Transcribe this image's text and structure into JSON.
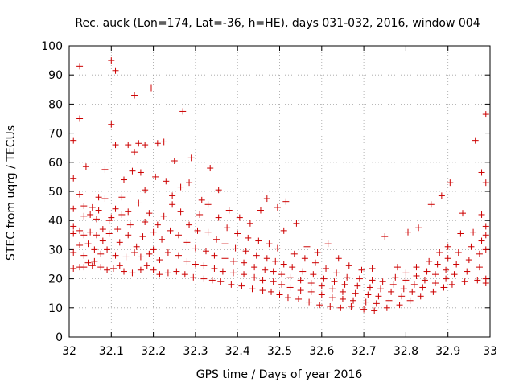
{
  "chart_data": {
    "type": "scatter",
    "title": "Rec. auck (Lon=174, Lat=-36, h=HE), days 031-032, 2016, window 004",
    "xlabel": "GPS time / Days of year 2016",
    "ylabel": "STEC from uqrg / TECUs",
    "xlim": [
      32,
      33
    ],
    "ylim": [
      0,
      100
    ],
    "xticks": [
      32,
      32.1,
      32.2,
      32.3,
      32.4,
      32.5,
      32.6,
      32.7,
      32.8,
      32.9,
      33
    ],
    "xtick_labels": [
      "32",
      "32.1",
      "32.2",
      "32.3",
      "32.4",
      "32.5",
      "32.6",
      "32.7",
      "32.8",
      "32.9",
      "33"
    ],
    "yticks": [
      0,
      10,
      20,
      30,
      40,
      50,
      60,
      70,
      80,
      90,
      100
    ],
    "ytick_labels": [
      "0",
      "10",
      "20",
      "30",
      "40",
      "50",
      "60",
      "70",
      "80",
      "90",
      "100"
    ],
    "grid": true,
    "marker": "+",
    "color": "#cc0000",
    "series": [
      {
        "name": "STEC",
        "points": [
          [
            32.01,
            23.5
          ],
          [
            32.01,
            29.0
          ],
          [
            32.01,
            35.5
          ],
          [
            32.01,
            38.0
          ],
          [
            32.01,
            44.0
          ],
          [
            32.01,
            54.5
          ],
          [
            32.01,
            67.5
          ],
          [
            32.025,
            24.0
          ],
          [
            32.025,
            31.5
          ],
          [
            32.025,
            36.5
          ],
          [
            32.025,
            49.0
          ],
          [
            32.025,
            75.0
          ],
          [
            32.025,
            93.0
          ],
          [
            32.035,
            24.0
          ],
          [
            32.035,
            28.0
          ],
          [
            32.035,
            35.0
          ],
          [
            32.035,
            41.5
          ],
          [
            32.035,
            45.0
          ],
          [
            32.04,
            58.5
          ],
          [
            32.045,
            25.5
          ],
          [
            32.045,
            32.0
          ],
          [
            32.05,
            36.0
          ],
          [
            32.05,
            42.0
          ],
          [
            32.055,
            24.5
          ],
          [
            32.055,
            44.5
          ],
          [
            32.06,
            26.0
          ],
          [
            32.06,
            30.0
          ],
          [
            32.065,
            35.0
          ],
          [
            32.065,
            40.5
          ],
          [
            32.07,
            43.5
          ],
          [
            32.07,
            48.0
          ],
          [
            32.075,
            24.0
          ],
          [
            32.075,
            28.5
          ],
          [
            32.08,
            33.0
          ],
          [
            32.08,
            37.0
          ],
          [
            32.085,
            47.5
          ],
          [
            32.085,
            57.5
          ],
          [
            32.09,
            23.0
          ],
          [
            32.09,
            30.0
          ],
          [
            32.095,
            35.5
          ],
          [
            32.095,
            40.0
          ],
          [
            32.1,
            41.0
          ],
          [
            32.1,
            73.0
          ],
          [
            32.1,
            95.0
          ],
          [
            32.105,
            23.5
          ],
          [
            32.11,
            28.0
          ],
          [
            32.11,
            44.0
          ],
          [
            32.11,
            66.0
          ],
          [
            32.11,
            91.5
          ],
          [
            32.115,
            37.0
          ],
          [
            32.12,
            24.5
          ],
          [
            32.12,
            32.5
          ],
          [
            32.125,
            42.0
          ],
          [
            32.125,
            48.0
          ],
          [
            32.13,
            54.0
          ],
          [
            32.13,
            22.5
          ],
          [
            32.135,
            27.5
          ],
          [
            32.14,
            35.0
          ],
          [
            32.14,
            43.0
          ],
          [
            32.14,
            66.0
          ],
          [
            32.145,
            38.5
          ],
          [
            32.15,
            57.0
          ],
          [
            32.15,
            22.0
          ],
          [
            32.155,
            29.0
          ],
          [
            32.155,
            63.5
          ],
          [
            32.155,
            83.0
          ],
          [
            32.16,
            31.0
          ],
          [
            32.165,
            46.0
          ],
          [
            32.165,
            66.5
          ],
          [
            32.17,
            23.0
          ],
          [
            32.17,
            27.5
          ],
          [
            32.17,
            56.5
          ],
          [
            32.175,
            34.5
          ],
          [
            32.18,
            39.5
          ],
          [
            32.18,
            50.5
          ],
          [
            32.18,
            66.0
          ],
          [
            32.185,
            24.5
          ],
          [
            32.19,
            28.5
          ],
          [
            32.19,
            42.5
          ],
          [
            32.195,
            85.5
          ],
          [
            32.2,
            23.0
          ],
          [
            32.2,
            30.0
          ],
          [
            32.2,
            36.0
          ],
          [
            32.205,
            55.0
          ],
          [
            32.21,
            38.5
          ],
          [
            32.21,
            66.5
          ],
          [
            32.215,
            21.5
          ],
          [
            32.215,
            26.5
          ],
          [
            32.22,
            33.5
          ],
          [
            32.225,
            41.5
          ],
          [
            32.225,
            67.0
          ],
          [
            32.23,
            53.5
          ],
          [
            32.235,
            22.0
          ],
          [
            32.235,
            29.0
          ],
          [
            32.24,
            36.5
          ],
          [
            32.245,
            45.5
          ],
          [
            32.245,
            48.5
          ],
          [
            32.25,
            60.5
          ],
          [
            32.255,
            22.5
          ],
          [
            32.26,
            28.0
          ],
          [
            32.26,
            35.0
          ],
          [
            32.265,
            43.0
          ],
          [
            32.265,
            51.5
          ],
          [
            32.27,
            77.5
          ],
          [
            32.275,
            21.5
          ],
          [
            32.28,
            26.0
          ],
          [
            32.28,
            32.5
          ],
          [
            32.285,
            38.5
          ],
          [
            32.285,
            53.0
          ],
          [
            32.29,
            61.5
          ],
          [
            32.295,
            20.5
          ],
          [
            32.3,
            25.0
          ],
          [
            32.3,
            30.5
          ],
          [
            32.305,
            36.5
          ],
          [
            32.31,
            42.0
          ],
          [
            32.315,
            47.0
          ],
          [
            32.32,
            20.0
          ],
          [
            32.32,
            24.5
          ],
          [
            32.325,
            29.5
          ],
          [
            32.33,
            36.0
          ],
          [
            32.33,
            45.5
          ],
          [
            32.335,
            58.0
          ],
          [
            32.34,
            19.5
          ],
          [
            32.345,
            23.5
          ],
          [
            32.345,
            28.0
          ],
          [
            32.35,
            33.5
          ],
          [
            32.355,
            41.0
          ],
          [
            32.355,
            50.5
          ],
          [
            32.36,
            19.0
          ],
          [
            32.365,
            22.5
          ],
          [
            32.37,
            27.0
          ],
          [
            32.37,
            32.0
          ],
          [
            32.375,
            37.5
          ],
          [
            32.38,
            43.5
          ],
          [
            32.385,
            18.0
          ],
          [
            32.39,
            22.0
          ],
          [
            32.39,
            26.0
          ],
          [
            32.395,
            30.5
          ],
          [
            32.4,
            35.5
          ],
          [
            32.405,
            41.0
          ],
          [
            32.41,
            17.5
          ],
          [
            32.415,
            21.5
          ],
          [
            32.415,
            25.5
          ],
          [
            32.42,
            29.5
          ],
          [
            32.425,
            34.0
          ],
          [
            32.43,
            39.0
          ],
          [
            32.435,
            16.5
          ],
          [
            32.44,
            20.5
          ],
          [
            32.44,
            24.0
          ],
          [
            32.445,
            28.0
          ],
          [
            32.45,
            33.0
          ],
          [
            32.455,
            43.5
          ],
          [
            32.46,
            16.0
          ],
          [
            32.46,
            19.5
          ],
          [
            32.465,
            23.0
          ],
          [
            32.47,
            27.0
          ],
          [
            32.47,
            47.5
          ],
          [
            32.475,
            32.0
          ],
          [
            32.48,
            15.5
          ],
          [
            32.485,
            19.0
          ],
          [
            32.485,
            22.5
          ],
          [
            32.49,
            26.0
          ],
          [
            32.495,
            30.5
          ],
          [
            32.495,
            44.5
          ],
          [
            32.5,
            14.5
          ],
          [
            32.505,
            18.0
          ],
          [
            32.505,
            21.5
          ],
          [
            32.51,
            25.0
          ],
          [
            32.51,
            36.5
          ],
          [
            32.515,
            46.5
          ],
          [
            32.52,
            13.5
          ],
          [
            32.525,
            17.0
          ],
          [
            32.525,
            20.5
          ],
          [
            32.53,
            24.0
          ],
          [
            32.535,
            28.5
          ],
          [
            32.54,
            39.0
          ],
          [
            32.545,
            13.0
          ],
          [
            32.55,
            16.0
          ],
          [
            32.55,
            19.5
          ],
          [
            32.555,
            22.5
          ],
          [
            32.56,
            27.0
          ],
          [
            32.565,
            31.0
          ],
          [
            32.57,
            12.0
          ],
          [
            32.575,
            15.5
          ],
          [
            32.575,
            18.5
          ],
          [
            32.58,
            21.5
          ],
          [
            32.585,
            25.5
          ],
          [
            32.59,
            29.0
          ],
          [
            32.595,
            11.0
          ],
          [
            32.6,
            14.5
          ],
          [
            32.6,
            17.5
          ],
          [
            32.605,
            20.0
          ],
          [
            32.61,
            23.5
          ],
          [
            32.615,
            32.0
          ],
          [
            32.62,
            10.5
          ],
          [
            32.625,
            13.5
          ],
          [
            32.625,
            16.5
          ],
          [
            32.63,
            19.0
          ],
          [
            32.635,
            22.0
          ],
          [
            32.64,
            27.0
          ],
          [
            32.645,
            10.0
          ],
          [
            32.65,
            13.0
          ],
          [
            32.65,
            15.5
          ],
          [
            32.655,
            18.0
          ],
          [
            32.66,
            20.5
          ],
          [
            32.665,
            24.5
          ],
          [
            32.67,
            10.5
          ],
          [
            32.675,
            12.5
          ],
          [
            32.68,
            15.0
          ],
          [
            32.685,
            17.5
          ],
          [
            32.69,
            20.0
          ],
          [
            32.695,
            23.0
          ],
          [
            32.7,
            9.5
          ],
          [
            32.705,
            12.0
          ],
          [
            32.71,
            14.5
          ],
          [
            32.715,
            17.0
          ],
          [
            32.72,
            19.5
          ],
          [
            32.72,
            23.5
          ],
          [
            32.725,
            9.0
          ],
          [
            32.73,
            11.5
          ],
          [
            32.735,
            14.0
          ],
          [
            32.74,
            16.5
          ],
          [
            32.745,
            19.0
          ],
          [
            32.75,
            34.5
          ],
          [
            32.755,
            10.0
          ],
          [
            32.76,
            12.5
          ],
          [
            32.765,
            15.5
          ],
          [
            32.77,
            18.0
          ],
          [
            32.775,
            20.5
          ],
          [
            32.78,
            24.0
          ],
          [
            32.785,
            11.0
          ],
          [
            32.79,
            14.0
          ],
          [
            32.795,
            16.5
          ],
          [
            32.8,
            19.5
          ],
          [
            32.8,
            22.0
          ],
          [
            32.805,
            36.0
          ],
          [
            32.81,
            12.5
          ],
          [
            32.815,
            15.5
          ],
          [
            32.82,
            18.0
          ],
          [
            32.825,
            21.0
          ],
          [
            32.825,
            24.0
          ],
          [
            32.83,
            37.5
          ],
          [
            32.835,
            14.0
          ],
          [
            32.84,
            17.0
          ],
          [
            32.845,
            19.5
          ],
          [
            32.85,
            22.5
          ],
          [
            32.855,
            26.0
          ],
          [
            32.86,
            45.5
          ],
          [
            32.865,
            15.5
          ],
          [
            32.87,
            18.5
          ],
          [
            32.87,
            21.5
          ],
          [
            32.875,
            25.0
          ],
          [
            32.88,
            29.0
          ],
          [
            32.885,
            48.5
          ],
          [
            32.89,
            17.0
          ],
          [
            32.895,
            20.0
          ],
          [
            32.895,
            23.0
          ],
          [
            32.9,
            27.0
          ],
          [
            32.9,
            31.0
          ],
          [
            32.905,
            53.0
          ],
          [
            32.91,
            18.0
          ],
          [
            32.915,
            21.5
          ],
          [
            32.92,
            25.0
          ],
          [
            32.925,
            29.0
          ],
          [
            32.93,
            35.5
          ],
          [
            32.935,
            42.5
          ],
          [
            32.94,
            19.0
          ],
          [
            32.945,
            22.5
          ],
          [
            32.95,
            26.5
          ],
          [
            32.955,
            31.0
          ],
          [
            32.96,
            36.0
          ],
          [
            32.965,
            67.5
          ],
          [
            32.97,
            19.5
          ],
          [
            32.975,
            24.0
          ],
          [
            32.975,
            28.5
          ],
          [
            32.98,
            33.0
          ],
          [
            32.98,
            42.0
          ],
          [
            32.98,
            56.5
          ],
          [
            32.99,
            18.5
          ],
          [
            32.99,
            20.0
          ],
          [
            32.99,
            30.0
          ],
          [
            32.99,
            35.0
          ],
          [
            32.99,
            38.0
          ],
          [
            32.99,
            53.0
          ],
          [
            32.99,
            76.5
          ]
        ]
      }
    ]
  }
}
